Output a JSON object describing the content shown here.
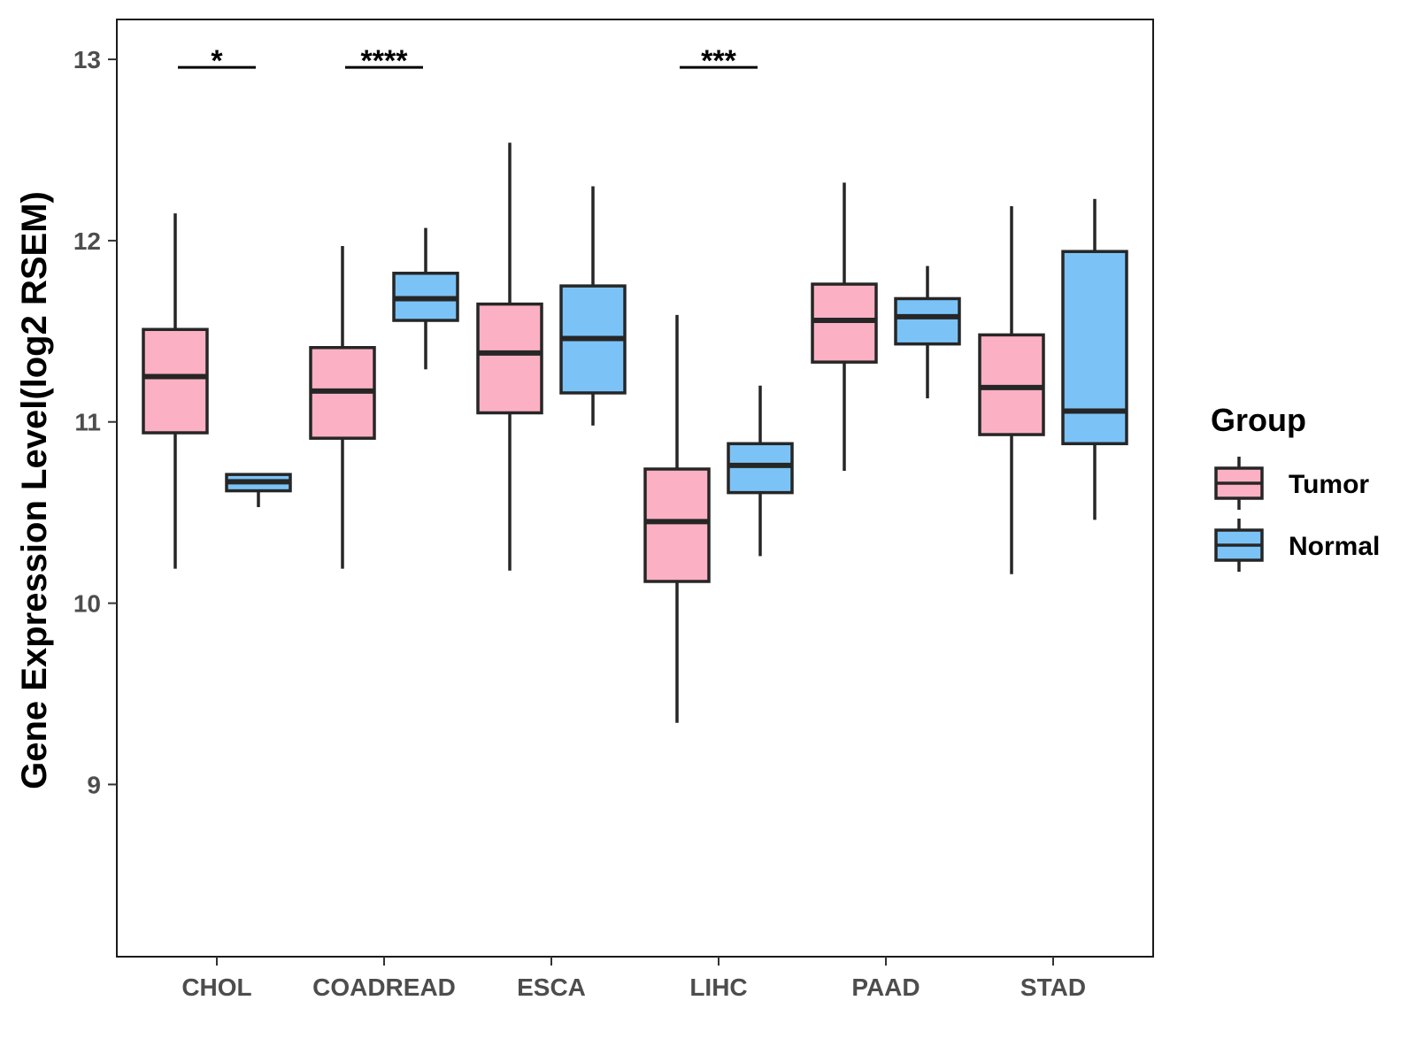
{
  "chart_data": {
    "type": "box",
    "title": "",
    "xlabel": "",
    "ylabel": "Gene Expression Level(log2 RSEM)",
    "ylim": [
      8.05,
      13.22
    ],
    "yticks": [
      9,
      10,
      11,
      12,
      13
    ],
    "categories": [
      "CHOL",
      "COADREAD",
      "ESCA",
      "LIHC",
      "PAAD",
      "STAD"
    ],
    "legend": {
      "title": "Group",
      "position": "right",
      "entries": [
        {
          "name": "Tumor",
          "color": "#FBB1C3"
        },
        {
          "name": "Normal",
          "color": "#7BC3F7"
        }
      ]
    },
    "series": [
      {
        "name": "Tumor",
        "color": "#FBB1C3",
        "boxes": [
          {
            "min": 10.19,
            "q1": 10.94,
            "median": 11.25,
            "q3": 11.51,
            "max": 12.15
          },
          {
            "min": 10.19,
            "q1": 10.91,
            "median": 11.17,
            "q3": 11.41,
            "max": 11.97
          },
          {
            "min": 10.18,
            "q1": 11.05,
            "median": 11.38,
            "q3": 11.65,
            "max": 12.54
          },
          {
            "min": 9.34,
            "q1": 10.12,
            "median": 10.45,
            "q3": 10.74,
            "max": 11.59
          },
          {
            "min": 10.73,
            "q1": 11.33,
            "median": 11.56,
            "q3": 11.76,
            "max": 12.32
          },
          {
            "min": 10.16,
            "q1": 10.93,
            "median": 11.19,
            "q3": 11.48,
            "max": 12.19
          }
        ]
      },
      {
        "name": "Normal",
        "color": "#7BC3F7",
        "boxes": [
          {
            "min": 10.53,
            "q1": 10.62,
            "median": 10.67,
            "q3": 10.71,
            "max": 10.71
          },
          {
            "min": 11.29,
            "q1": 11.56,
            "median": 11.68,
            "q3": 11.82,
            "max": 12.07
          },
          {
            "min": 10.98,
            "q1": 11.16,
            "median": 11.46,
            "q3": 11.75,
            "max": 12.3
          },
          {
            "min": 10.26,
            "q1": 10.61,
            "median": 10.76,
            "q3": 10.88,
            "max": 11.2
          },
          {
            "min": 11.13,
            "q1": 11.43,
            "median": 11.58,
            "q3": 11.68,
            "max": 11.86
          },
          {
            "min": 10.46,
            "q1": 10.88,
            "median": 11.06,
            "q3": 11.94,
            "max": 12.23
          }
        ]
      }
    ],
    "significance": [
      {
        "category": "CHOL",
        "label": "*"
      },
      {
        "category": "COADREAD",
        "label": "****"
      },
      {
        "category": "LIHC",
        "label": "***"
      }
    ]
  }
}
